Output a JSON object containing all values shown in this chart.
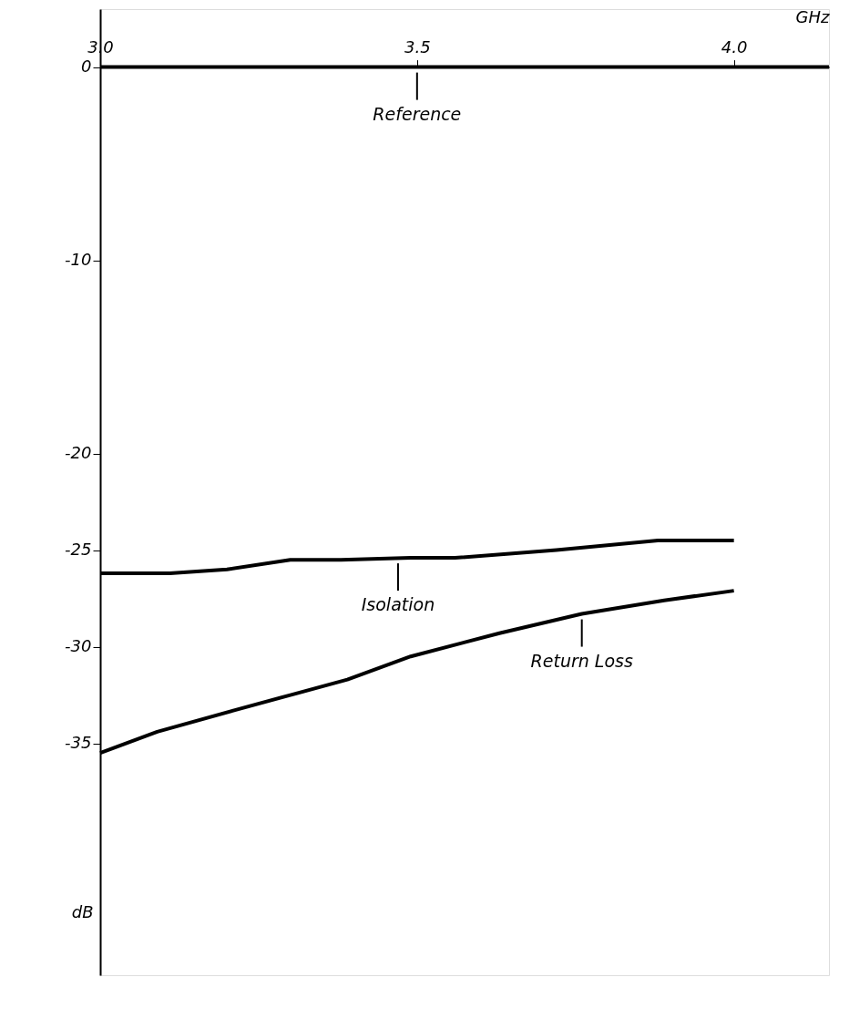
{
  "chart_data": {
    "type": "line",
    "xlabel": "GHz",
    "ylabel": "dB",
    "xlim": [
      3.0,
      4.15
    ],
    "ylim": [
      -47,
      3
    ],
    "xticks": [
      {
        "value": 3.0,
        "label": "3.0"
      },
      3.5,
      {
        "value": 4.0,
        "label": "4.0"
      }
    ],
    "yticks": [
      0,
      -10,
      -20,
      -25,
      -30,
      -35
    ],
    "grid": false,
    "line_style": "solid",
    "marker": "none",
    "series": [
      {
        "color": "#000000",
        "x": [
          3.0,
          3.11,
          3.2,
          3.3,
          3.38,
          3.49,
          3.56,
          3.72,
          3.88,
          4.0
        ],
        "values": [
          -26.2,
          -26.2,
          -26.0,
          -25.5,
          -25.5,
          -25.4,
          -25.4,
          -25.0,
          -24.5,
          -24.5
        ]
      },
      {
        "color": "#000000",
        "x": [
          3.0,
          3.09,
          3.21,
          3.3,
          3.39,
          3.49,
          3.63,
          3.76,
          3.89,
          4.0
        ],
        "values": [
          -35.5,
          -34.4,
          -33.3,
          -32.5,
          -31.7,
          -30.5,
          -29.3,
          -28.3,
          -27.6,
          -27.1
        ]
      }
    ],
    "ref_lines": [
      {
        "axis": "y",
        "value": 0,
        "label": "Reference",
        "color": "#000000",
        "line_style": "solid"
      }
    ],
    "annotations": [
      {
        "text": "Isolation",
        "x": 3.47,
        "y": -25.4
      },
      {
        "text": "Return Loss",
        "x": 3.76,
        "y": -28.3
      }
    ]
  }
}
